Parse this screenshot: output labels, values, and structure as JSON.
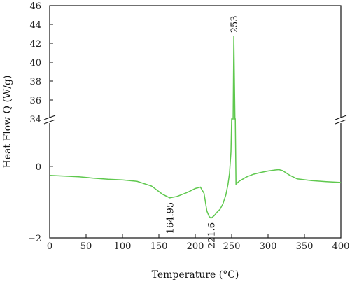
{
  "chart_data": {
    "type": "line",
    "xlabel": "Temperature (°C)",
    "ylabel": "Heat Flow Q (W/g)",
    "xlim": [
      0,
      400
    ],
    "x_ticks": [
      "0",
      "50",
      "100",
      "150",
      "200",
      "250",
      "300",
      "350",
      "400"
    ],
    "y_axis_break": true,
    "y_upper_range": [
      34,
      46
    ],
    "y_upper_ticks": [
      "34",
      "36",
      "38",
      "40",
      "42",
      "44",
      "46"
    ],
    "y_lower_range": [
      -2,
      1.33
    ],
    "y_lower_ticks": [
      "0",
      "−2"
    ],
    "line_color": "#5fc84e",
    "grid": false,
    "annotations": [
      {
        "text": "253",
        "x": 253,
        "y": 42.8
      },
      {
        "text": "164.95",
        "x": 164.95,
        "y": -0.88
      },
      {
        "text": "221.6",
        "x": 221.6,
        "y": -1.45
      }
    ],
    "series": [
      {
        "points": [
          [
            0,
            -0.25
          ],
          [
            20,
            -0.27
          ],
          [
            40,
            -0.29
          ],
          [
            60,
            -0.33
          ],
          [
            80,
            -0.36
          ],
          [
            100,
            -0.38
          ],
          [
            120,
            -0.42
          ],
          [
            140,
            -0.55
          ],
          [
            155,
            -0.78
          ],
          [
            164.95,
            -0.88
          ],
          [
            175,
            -0.84
          ],
          [
            190,
            -0.72
          ],
          [
            200,
            -0.62
          ],
          [
            207,
            -0.58
          ],
          [
            212,
            -0.75
          ],
          [
            216,
            -1.25
          ],
          [
            219,
            -1.4
          ],
          [
            221.6,
            -1.45
          ],
          [
            226,
            -1.38
          ],
          [
            230,
            -1.28
          ],
          [
            234,
            -1.2
          ],
          [
            238,
            -1.05
          ],
          [
            242,
            -0.8
          ],
          [
            245,
            -0.5
          ],
          [
            247,
            -0.2
          ],
          [
            249,
            0.4
          ],
          [
            250,
            34
          ],
          [
            252,
            34
          ],
          [
            253,
            42.8
          ],
          [
            254.5,
            34
          ],
          [
            255,
            34
          ],
          [
            256,
            -0.5
          ],
          [
            260,
            -0.42
          ],
          [
            270,
            -0.3
          ],
          [
            280,
            -0.22
          ],
          [
            290,
            -0.17
          ],
          [
            300,
            -0.13
          ],
          [
            310,
            -0.1
          ],
          [
            315,
            -0.09
          ],
          [
            320,
            -0.12
          ],
          [
            330,
            -0.25
          ],
          [
            340,
            -0.35
          ],
          [
            360,
            -0.4
          ],
          [
            380,
            -0.43
          ],
          [
            400,
            -0.45
          ]
        ]
      }
    ]
  }
}
